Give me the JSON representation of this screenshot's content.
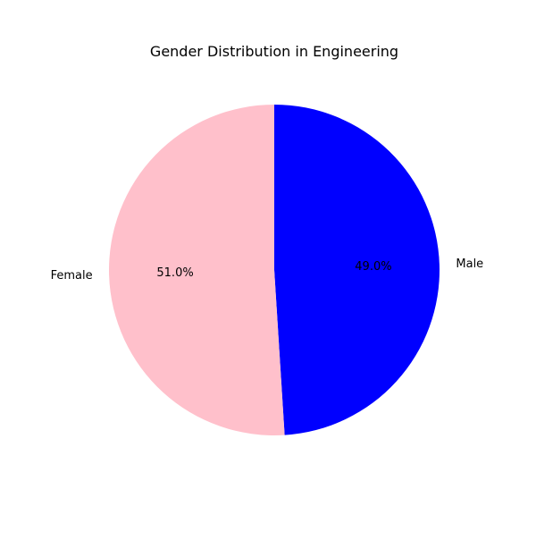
{
  "chart_data": {
    "type": "pie",
    "title": "Gender Distribution in Engineering",
    "start_angle_deg": 90,
    "direction": "clockwise",
    "slices": [
      {
        "label": "Male",
        "value": 49.0,
        "pct_label": "49.0%",
        "color": "#0000ff"
      },
      {
        "label": "Female",
        "value": 51.0,
        "pct_label": "51.0%",
        "color": "#ffc0cb"
      }
    ]
  }
}
